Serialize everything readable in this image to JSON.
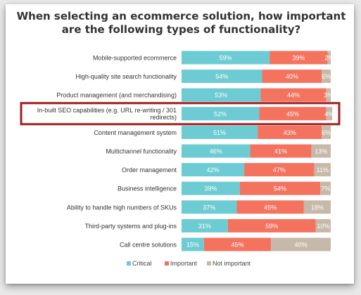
{
  "chart_data": {
    "type": "bar",
    "stacked": true,
    "orientation": "horizontal",
    "title": "When selecting an ecommerce solution, how important are the following types of functionality?",
    "categories": [
      "Mobile-supported ecommerce",
      "High-quality site search functionality",
      "Product management (and merchandising)",
      "In-built SEO capabilities (e.g. URL re-writing / 301 redirects)",
      "Content management system",
      "Multichannel functionality",
      "Order management",
      "Business intelligence",
      "Ability to handle high numbers of SKUs",
      "Third-party systems and plug-ins",
      "Call centre solutions"
    ],
    "category_lines": [
      [
        "Mobile-supported ecommerce"
      ],
      [
        "High-quality site search functionality"
      ],
      [
        "Product management (and merchandising)"
      ],
      [
        "In-built SEO capabilities (e.g. URL re-writing / 301",
        "redirects)"
      ],
      [
        "Content management system"
      ],
      [
        "Multichannel functionality"
      ],
      [
        "Order management"
      ],
      [
        "Business intelligence"
      ],
      [
        "Ability to handle high numbers of SKUs"
      ],
      [
        "Third-party systems and plug-ins"
      ],
      [
        "Call centre solutions"
      ]
    ],
    "series": [
      {
        "name": "Critical",
        "color": "#6dcbd3",
        "values": [
          59,
          54,
          53,
          52,
          51,
          46,
          42,
          39,
          37,
          31,
          15
        ]
      },
      {
        "name": "Important",
        "color": "#f4735f",
        "values": [
          39,
          40,
          44,
          45,
          43,
          41,
          47,
          54,
          45,
          59,
          45
        ]
      },
      {
        "name": "Not important",
        "color": "#c7b9a9",
        "values": [
          2,
          6,
          3,
          4,
          6,
          13,
          11,
          7,
          18,
          10,
          40
        ]
      }
    ],
    "highlighted_category": "In-built SEO capabilities (e.g. URL re-writing / 301 redirects)",
    "highlight_color": "#a02020",
    "xlim": [
      0,
      100
    ],
    "legend_position": "bottom",
    "grid": false
  }
}
